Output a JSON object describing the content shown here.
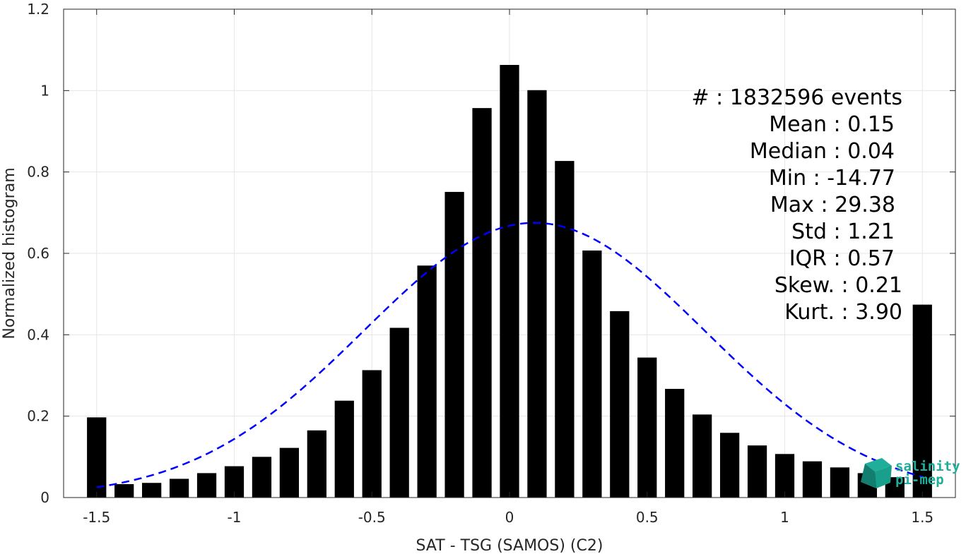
{
  "chart_data": {
    "type": "bar",
    "xlabel": "SAT - TSG (SAMOS) (C2)",
    "ylabel": "Normalized histogram",
    "xlim": [
      -1.62,
      1.62
    ],
    "ylim": [
      0,
      1.2
    ],
    "x_ticks": [
      -1.5,
      -1,
      -0.5,
      0,
      0.5,
      1,
      1.5
    ],
    "x_tick_labels": [
      "-1.5",
      "-1",
      "-0.5",
      "0",
      "0.5",
      "1",
      "1.5"
    ],
    "y_ticks": [
      0,
      0.2,
      0.4,
      0.6,
      0.8,
      1,
      1.2
    ],
    "y_tick_labels": [
      "0",
      "0.2",
      "0.4",
      "0.6",
      "0.8",
      "1",
      "1.2"
    ],
    "grid": true,
    "bar_width": 0.07,
    "bar_color": "#000000",
    "bins": {
      "x": [
        -1.5,
        -1.4,
        -1.3,
        -1.2,
        -1.1,
        -1.0,
        -0.9,
        -0.8,
        -0.7,
        -0.6,
        -0.5,
        -0.4,
        -0.3,
        -0.2,
        -0.1,
        0.0,
        0.1,
        0.2,
        0.3,
        0.4,
        0.5,
        0.6,
        0.7,
        0.8,
        0.9,
        1.0,
        1.1,
        1.2,
        1.3,
        1.4,
        1.5
      ],
      "values": [
        0.197,
        0.033,
        0.036,
        0.046,
        0.06,
        0.077,
        0.1,
        0.122,
        0.165,
        0.238,
        0.313,
        0.417,
        0.57,
        0.751,
        0.957,
        1.063,
        1.001,
        0.827,
        0.607,
        0.458,
        0.344,
        0.267,
        0.204,
        0.159,
        0.128,
        0.107,
        0.089,
        0.074,
        0.06,
        0.05,
        0.474
      ]
    },
    "fit_curve": {
      "type": "gaussian",
      "mean": 0.09,
      "amplitude": 0.675,
      "sigma": 0.62,
      "x_range": [
        -1.5,
        1.5
      ],
      "color": "#0000ff",
      "style": "dashed"
    },
    "stats": [
      {
        "label": "#  : 1832596 events"
      },
      {
        "label": "Mean : 0.15"
      },
      {
        "label": "Median : 0.04"
      },
      {
        "label": "Min : -14.77"
      },
      {
        "label": "Max : 29.38"
      },
      {
        "label": "Std : 1.21"
      },
      {
        "label": "IQR : 0.57"
      },
      {
        "label": "Skew. : 0.21"
      },
      {
        "label": "Kurt. : 3.90"
      }
    ]
  },
  "logo": {
    "line1": "salinity",
    "line2": "pi-mep",
    "color": "#1fae99"
  }
}
